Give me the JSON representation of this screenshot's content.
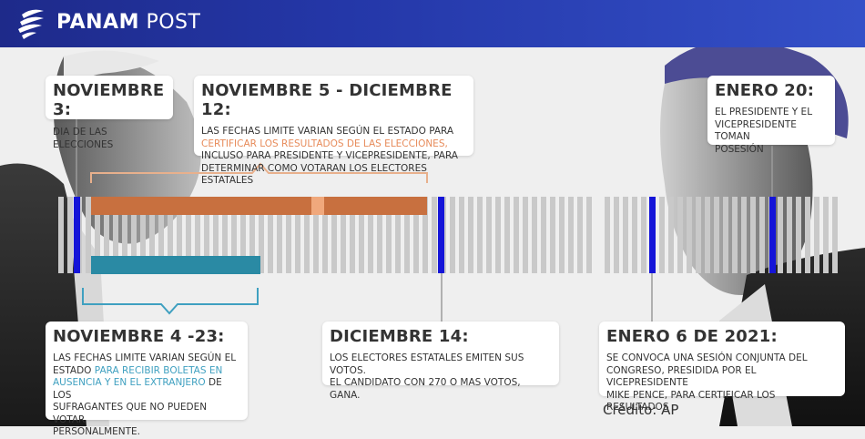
{
  "header": {
    "brand_bold": "PANAM",
    "brand_light": "POST"
  },
  "cards": {
    "nov3": {
      "title": "NOVIEMBRE 3:",
      "body": "DIA DE LAS ELECCIONES"
    },
    "nov5": {
      "title": "NOVIEMBRE 5 - DICIEMBRE 12:",
      "line1": "LAS FECHAS LIMITE VARIAN SEGÚN EL ESTADO PARA",
      "line2_highlight": "CERTIFICAR LOS RESULTADOS DE LAS ELECCIONES,",
      "line3": "INCLUSO PARA PRESIDENTE Y VICEPRESIDENTE, PARA",
      "line4": "DETERMINAR COMO VOTARAN LOS ELECTORES ESTATALES"
    },
    "jan20": {
      "title": "ENERO 20:",
      "line1": "EL PRESIDENTE Y EL",
      "line2": "VICEPRESIDENTE TOMAN",
      "line3": "POSESIÓN"
    },
    "nov4": {
      "title": "NOVIEMBRE 4 -23:",
      "line1": "LAS FECHAS LIMITE VARIAN SEGÚN EL",
      "line2_a": "ESTADO ",
      "line2_highlight": "PARA RECIBIR BOLETAS EN",
      "line3_highlight": "AUSENCIA Y EN EL EXTRANJERO",
      "line3_b": " DE LOS",
      "line4": "SUFRAGANTES QUE NO PUEDEN VOTAR",
      "line5": "PERSONALMENTE."
    },
    "dec14": {
      "title": "DICIEMBRE 14:",
      "line1": "LOS ELECTORES ESTATALES EMITEN SUS VOTOS.",
      "line2": "EL CANDIDATO CON 270 O MAS VOTOS, GANA."
    },
    "jan6": {
      "title": "ENERO 6 DE 2021:",
      "line1": "SE CONVOCA UNA SESIÓN CONJUNTA DEL",
      "line2": "CONGRESO, PRESIDIDA POR EL VICEPRESIDENTE",
      "line3": "MIKE PENCE, PARA CERTIFICAR LOS RESULTADOS"
    }
  },
  "credit": "Crédito: AP",
  "colors": {
    "orange": "#c8703f",
    "teal": "#2a8aa4",
    "blue": "#1414d8",
    "bar": "#c9c9c9"
  }
}
